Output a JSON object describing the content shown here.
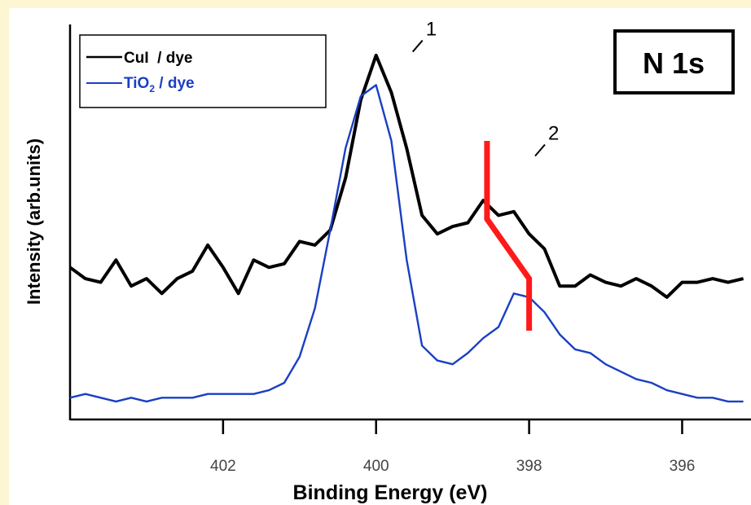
{
  "chart_data": {
    "type": "line",
    "title_box": "N 1s",
    "xlabel": "Binding Energy (eV)",
    "ylabel": "Intensity (arb.units)",
    "x_reversed": true,
    "xlim": [
      404,
      395.1
    ],
    "ylim": [
      0,
      100
    ],
    "x_ticks": [
      402,
      400,
      398,
      396
    ],
    "x_tick_labels": [
      "402",
      "400",
      "398",
      "396"
    ],
    "grid": false,
    "legend_position": "top-left",
    "series": [
      {
        "name": "CuI / dye",
        "legend_main": "CuI",
        "legend_rest": "  / dye",
        "color": "#000000",
        "x": [
          404.0,
          403.8,
          403.6,
          403.4,
          403.2,
          403.0,
          402.8,
          402.6,
          402.4,
          402.2,
          402.0,
          401.8,
          401.6,
          401.4,
          401.2,
          401.0,
          400.8,
          400.6,
          400.4,
          400.2,
          400.0,
          399.8,
          399.6,
          399.4,
          399.2,
          399.0,
          398.8,
          398.6,
          398.4,
          398.2,
          398.0,
          397.8,
          397.6,
          397.4,
          397.2,
          397.0,
          396.8,
          396.6,
          396.4,
          396.2,
          396.0,
          395.8,
          395.6,
          395.4,
          395.2
        ],
        "y": [
          38,
          35,
          34,
          40,
          33,
          35,
          31,
          35,
          37,
          44,
          38,
          31,
          40,
          38,
          39,
          45,
          44,
          48,
          62,
          83,
          95,
          85,
          70,
          52,
          47,
          49,
          50,
          56,
          52,
          53,
          47,
          43,
          33,
          33,
          36,
          34,
          33,
          35,
          33,
          30,
          34,
          34,
          35,
          34,
          35
        ]
      },
      {
        "name": "TiO2 / dye",
        "legend_main": "TiO",
        "legend_sub": "2",
        "legend_rest": " / dye",
        "color": "#1a3fc4",
        "x": [
          404.0,
          403.8,
          403.6,
          403.4,
          403.2,
          403.0,
          402.8,
          402.6,
          402.4,
          402.2,
          402.0,
          401.8,
          401.6,
          401.4,
          401.2,
          401.0,
          400.8,
          400.6,
          400.4,
          400.2,
          400.0,
          399.8,
          399.6,
          399.4,
          399.2,
          399.0,
          398.8,
          398.6,
          398.4,
          398.2,
          398.0,
          397.8,
          397.6,
          397.4,
          397.2,
          397.0,
          396.8,
          396.6,
          396.4,
          396.2,
          396.0,
          395.8,
          395.6,
          395.4,
          395.2
        ],
        "y": [
          3,
          4,
          3,
          2,
          3,
          2,
          3,
          3,
          3,
          4,
          4,
          4,
          4,
          5,
          7,
          14,
          27,
          48,
          70,
          84,
          87,
          72,
          40,
          17,
          13,
          12,
          15,
          19,
          22,
          31,
          30,
          26,
          20,
          16,
          15,
          12,
          10,
          8,
          7,
          5,
          4,
          3,
          3,
          2,
          2
        ]
      }
    ],
    "annotations": [
      {
        "text": "1",
        "x": 399.5,
        "y": 99
      },
      {
        "text": "2",
        "x": 397.9,
        "y": 71
      }
    ],
    "marker": {
      "color": "#ff1a1a",
      "points": [
        [
          398.55,
          72
        ],
        [
          398.55,
          51
        ],
        [
          398.0,
          35
        ],
        [
          398.0,
          21
        ]
      ]
    }
  }
}
